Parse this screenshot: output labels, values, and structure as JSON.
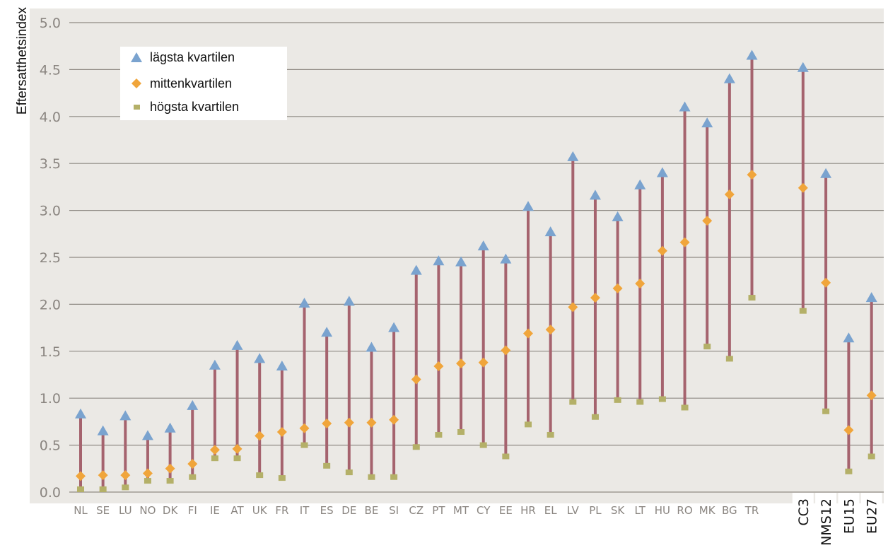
{
  "colors": {
    "background": "#ffffff",
    "plot_background": "#ebe9e5",
    "gridline": "#8f8a84",
    "range_bar": "#a5636e",
    "lowest_quartile": "#7aa3cf",
    "middle_quartile": "#f0a53b",
    "highest_quartile": "#b4b068",
    "tick_text": "#8a8580"
  },
  "legend": {
    "items": [
      {
        "label": "lägsta kvartilen",
        "icon": "triangle-marker-icon"
      },
      {
        "label": "mittenkvartilen",
        "icon": "diamond-marker-icon"
      },
      {
        "label": "högsta kvartilen",
        "icon": "square-marker-icon"
      }
    ]
  },
  "chart_data": {
    "type": "scatter",
    "ylabel": "Eftersatthetsindex",
    "xlabel": "",
    "ylim": [
      0,
      5
    ],
    "yticks": [
      "0.0",
      "0.5",
      "1.0",
      "1.5",
      "2.0",
      "2.5",
      "3.0",
      "3.5",
      "4.0",
      "4.5",
      "5.0"
    ],
    "grid": true,
    "legend_position": "top-left",
    "categories": [
      "NL",
      "SE",
      "LU",
      "NO",
      "DK",
      "FI",
      "IE",
      "AT",
      "UK",
      "FR",
      "IT",
      "ES",
      "DE",
      "BE",
      "SI",
      "CZ",
      "PT",
      "MT",
      "CY",
      "EE",
      "HR",
      "EL",
      "LV",
      "PL",
      "SK",
      "LT",
      "HU",
      "RO",
      "MK",
      "BG",
      "TR",
      "CC3",
      "NMS12",
      "EU15",
      "EU27"
    ],
    "rotated_categories": [
      "CC3",
      "NMS12",
      "EU15",
      "EU27"
    ],
    "series": [
      {
        "name": "lägsta kvartilen",
        "marker": "triangle",
        "values": [
          0.83,
          0.65,
          0.81,
          0.6,
          0.68,
          0.92,
          1.35,
          1.56,
          1.42,
          1.34,
          2.01,
          1.7,
          2.03,
          1.54,
          1.75,
          2.36,
          2.46,
          2.45,
          2.62,
          2.48,
          3.04,
          2.77,
          3.57,
          3.16,
          2.93,
          3.27,
          3.4,
          4.1,
          3.93,
          4.4,
          4.65,
          4.52,
          3.39,
          1.64,
          2.07
        ]
      },
      {
        "name": "mittenkvartilen",
        "marker": "diamond",
        "values": [
          0.17,
          0.18,
          0.18,
          0.2,
          0.25,
          0.3,
          0.45,
          0.46,
          0.6,
          0.64,
          0.68,
          0.73,
          0.74,
          0.74,
          0.77,
          1.2,
          1.34,
          1.37,
          1.38,
          1.51,
          1.69,
          1.73,
          1.97,
          2.07,
          2.17,
          2.22,
          2.57,
          2.66,
          2.89,
          3.17,
          3.38,
          3.24,
          2.23,
          0.66,
          1.03
        ]
      },
      {
        "name": "högsta kvartilen",
        "marker": "square",
        "values": [
          0.03,
          0.03,
          0.05,
          0.12,
          0.12,
          0.16,
          0.36,
          0.36,
          0.18,
          0.15,
          0.5,
          0.28,
          0.21,
          0.16,
          0.16,
          0.48,
          0.61,
          0.64,
          0.5,
          0.38,
          0.72,
          0.61,
          0.96,
          0.8,
          0.98,
          0.96,
          0.99,
          0.9,
          1.55,
          1.42,
          2.07,
          1.93,
          0.86,
          0.22,
          0.38
        ]
      }
    ]
  }
}
